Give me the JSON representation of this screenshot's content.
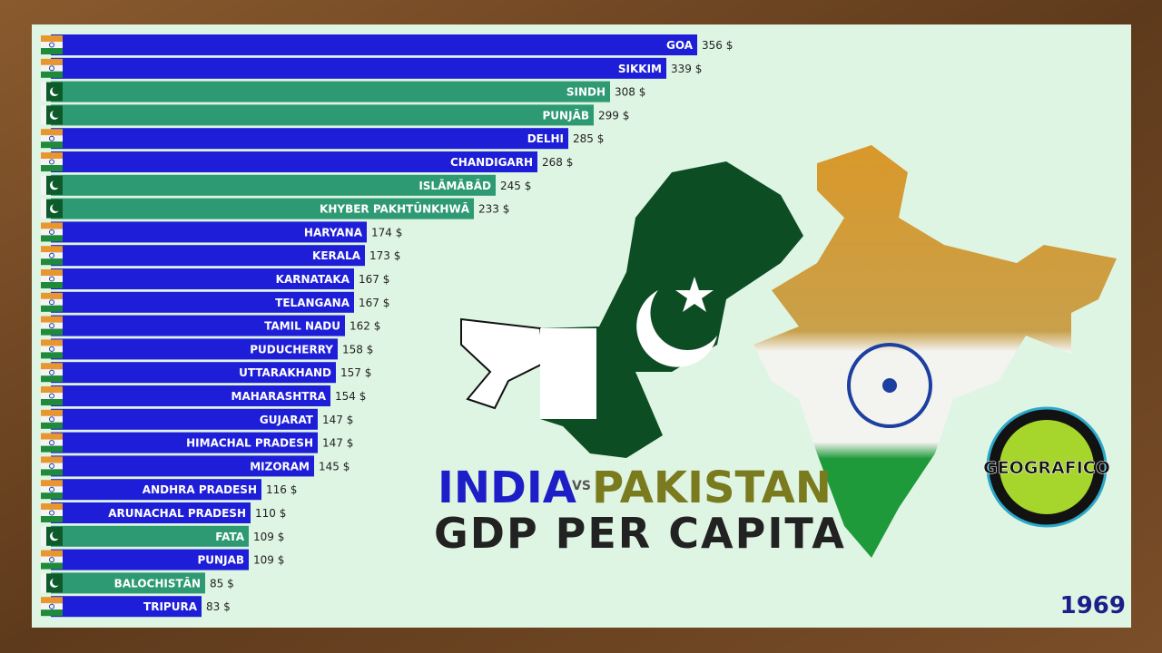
{
  "chart_data": {
    "type": "bar",
    "orientation": "horizontal",
    "title": {
      "left": "INDIA",
      "vs": "VS",
      "right": "PAKISTAN",
      "subtitle": "GDP PER CAPITA"
    },
    "year": "1969",
    "logo": "GEOGRAFICO",
    "categories": [
      "GOA",
      "SIKKIM",
      "SINDH",
      "PUNJĀB",
      "DELHI",
      "CHANDIGARH",
      "ISLĀMĀBĀD",
      "KHYBER PAKHTŪNKHWĀ",
      "HARYANA",
      "KERALA",
      "KARNATAKA",
      "TELANGANA",
      "TAMIL NADU",
      "PUDUCHERRY",
      "UTTARAKHAND",
      "MAHARASHTRA",
      "GUJARAT",
      "HIMACHAL PRADESH",
      "MIZORAM",
      "ANDHRA PRADESH",
      "ARUNACHAL PRADESH",
      "FATA",
      "PUNJAB",
      "BALOCHISTĀN",
      "TRIPURA"
    ],
    "values": [
      356,
      339,
      308,
      299,
      285,
      268,
      245,
      233,
      174,
      173,
      167,
      167,
      162,
      158,
      157,
      154,
      147,
      147,
      145,
      116,
      110,
      109,
      109,
      85,
      83
    ],
    "value_labels": [
      "356 $",
      "339 $",
      "308 $",
      "299 $",
      "285 $",
      "268 $",
      "245 $",
      "233 $",
      "174 $",
      "173 $",
      "167 $",
      "167 $",
      "162 $",
      "158 $",
      "157 $",
      "154 $",
      "147 $",
      "147 $",
      "145 $",
      "116 $",
      "110 $",
      "109 $",
      "109 $",
      "85 $",
      "83 $"
    ],
    "colors": [
      "#1e1ed8",
      "#1e1ed8",
      "#2e9a73",
      "#2e9a73",
      "#1e1ed8",
      "#1e1ed8",
      "#2e9a73",
      "#2e9a73",
      "#1e1ed8",
      "#1e1ed8",
      "#1e1ed8",
      "#1e1ed8",
      "#1e1ed8",
      "#1e1ed8",
      "#1e1ed8",
      "#1e1ed8",
      "#1e1ed8",
      "#1e1ed8",
      "#1e1ed8",
      "#1e1ed8",
      "#1e1ed8",
      "#2e9a73",
      "#1e1ed8",
      "#2e9a73",
      "#1e1ed8"
    ]
  }
}
